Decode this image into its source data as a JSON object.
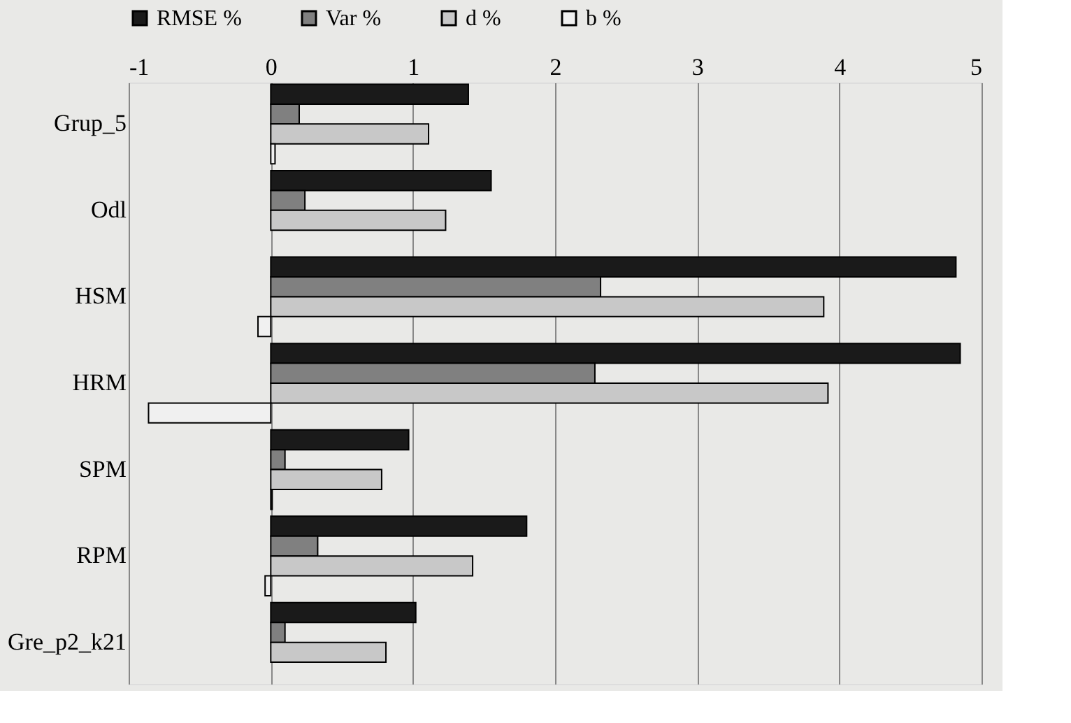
{
  "chart_data": {
    "type": "bar",
    "orientation": "horizontal",
    "categories": [
      "Grup_5",
      "Odl",
      "HSM",
      "HRM",
      "SPM",
      "RPM",
      "Gre_p2_k21"
    ],
    "series": [
      {
        "name": "RMSE %",
        "color": "#1a1a1a",
        "values": [
          1.39,
          1.55,
          4.82,
          4.85,
          0.97,
          1.8,
          1.02
        ]
      },
      {
        "name": "Var %",
        "color": "#808080",
        "values": [
          0.2,
          0.24,
          2.32,
          2.28,
          0.1,
          0.33,
          0.1
        ]
      },
      {
        "name": "d %",
        "color": "#c8c8c8",
        "values": [
          1.11,
          1.23,
          3.89,
          3.92,
          0.78,
          1.42,
          0.81
        ]
      },
      {
        "name": "b %",
        "color": "#f0f0f0",
        "values": [
          0.03,
          null,
          -0.09,
          -0.86,
          0.01,
          -0.04,
          null
        ]
      }
    ],
    "xlim": [
      -1,
      5
    ],
    "xticks": [
      -1,
      0,
      1,
      2,
      3,
      4,
      5
    ],
    "grid": "x",
    "legend": "top"
  }
}
